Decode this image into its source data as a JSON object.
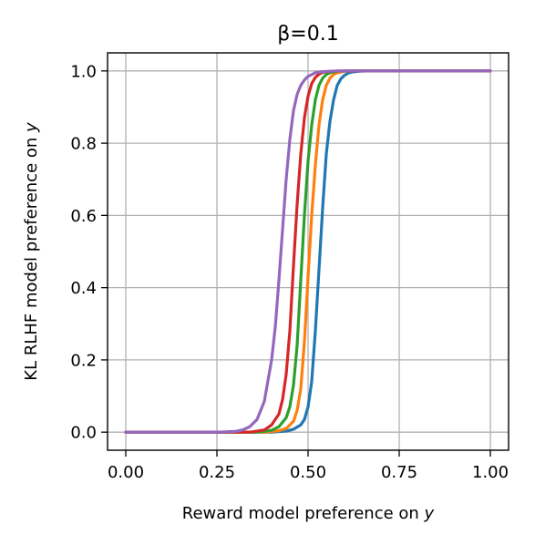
{
  "chart_data": {
    "type": "line",
    "title": "β=0.1",
    "xlabel_prefix": "Reward model preference on ",
    "xlabel_var": "y",
    "ylabel_prefix": "KL RLHF model preference on ",
    "ylabel_var": "y",
    "xlim": [
      -0.05,
      1.05
    ],
    "ylim": [
      -0.05,
      1.05
    ],
    "xticks": [
      0.0,
      0.25,
      0.5,
      0.75,
      1.0
    ],
    "xtick_labels": [
      "0.00",
      "0.25",
      "0.50",
      "0.75",
      "1.00"
    ],
    "yticks": [
      0.0,
      0.2,
      0.4,
      0.6,
      0.8,
      1.0
    ],
    "ytick_labels": [
      "0.0",
      "0.2",
      "0.4",
      "0.6",
      "0.8",
      "1.0"
    ],
    "grid": true,
    "series": [
      {
        "color": "#1f77b4",
        "x": [
          0.0,
          0.25,
          0.4,
          0.44,
          0.46,
          0.48,
          0.49,
          0.5,
          0.51,
          0.52,
          0.53,
          0.54,
          0.55,
          0.56,
          0.57,
          0.58,
          0.59,
          0.6,
          0.61,
          0.62,
          0.64,
          0.67,
          0.7,
          0.75,
          1.0
        ],
        "y": [
          0.0,
          0.0,
          0.0,
          0.003,
          0.008,
          0.02,
          0.035,
          0.07,
          0.14,
          0.28,
          0.45,
          0.62,
          0.77,
          0.86,
          0.92,
          0.96,
          0.978,
          0.988,
          0.994,
          0.997,
          0.999,
          1.0,
          1.0,
          1.0,
          1.0
        ]
      },
      {
        "color": "#ff7f0e",
        "x": [
          0.0,
          0.25,
          0.38,
          0.42,
          0.44,
          0.46,
          0.47,
          0.48,
          0.49,
          0.5,
          0.51,
          0.52,
          0.53,
          0.54,
          0.55,
          0.56,
          0.57,
          0.58,
          0.6,
          0.63,
          0.67,
          0.75,
          1.0
        ],
        "y": [
          0.0,
          0.0,
          0.0,
          0.004,
          0.01,
          0.03,
          0.06,
          0.12,
          0.25,
          0.43,
          0.6,
          0.74,
          0.85,
          0.92,
          0.96,
          0.98,
          0.99,
          0.995,
          0.999,
          1.0,
          1.0,
          1.0,
          1.0
        ]
      },
      {
        "color": "#2ca02c",
        "x": [
          0.0,
          0.25,
          0.36,
          0.4,
          0.42,
          0.44,
          0.45,
          0.46,
          0.47,
          0.48,
          0.49,
          0.5,
          0.51,
          0.52,
          0.53,
          0.54,
          0.55,
          0.56,
          0.58,
          0.61,
          0.65,
          0.75,
          1.0
        ],
        "y": [
          0.0,
          0.0,
          0.0,
          0.005,
          0.015,
          0.04,
          0.07,
          0.13,
          0.24,
          0.42,
          0.6,
          0.75,
          0.85,
          0.92,
          0.96,
          0.98,
          0.99,
          0.995,
          0.999,
          1.0,
          1.0,
          1.0,
          1.0
        ]
      },
      {
        "color": "#d62728",
        "x": [
          0.0,
          0.25,
          0.34,
          0.38,
          0.4,
          0.42,
          0.43,
          0.44,
          0.45,
          0.46,
          0.47,
          0.48,
          0.49,
          0.5,
          0.51,
          0.52,
          0.53,
          0.54,
          0.56,
          0.59,
          0.63,
          0.75,
          1.0
        ],
        "y": [
          0.0,
          0.0,
          0.0,
          0.006,
          0.02,
          0.05,
          0.09,
          0.16,
          0.28,
          0.46,
          0.63,
          0.77,
          0.87,
          0.93,
          0.965,
          0.982,
          0.991,
          0.996,
          0.999,
          1.0,
          1.0,
          1.0,
          1.0
        ]
      },
      {
        "color": "#9467bd",
        "x": [
          0.0,
          0.25,
          0.3,
          0.32,
          0.34,
          0.36,
          0.38,
          0.4,
          0.41,
          0.42,
          0.43,
          0.44,
          0.45,
          0.46,
          0.47,
          0.48,
          0.49,
          0.5,
          0.52,
          0.54,
          0.56,
          0.58,
          0.62,
          0.75,
          1.0
        ],
        "y": [
          0.0,
          0.0,
          0.002,
          0.006,
          0.015,
          0.035,
          0.085,
          0.2,
          0.29,
          0.42,
          0.56,
          0.7,
          0.81,
          0.89,
          0.935,
          0.96,
          0.975,
          0.985,
          0.995,
          0.998,
          0.999,
          1.0,
          1.0,
          1.0,
          1.0
        ]
      }
    ]
  }
}
